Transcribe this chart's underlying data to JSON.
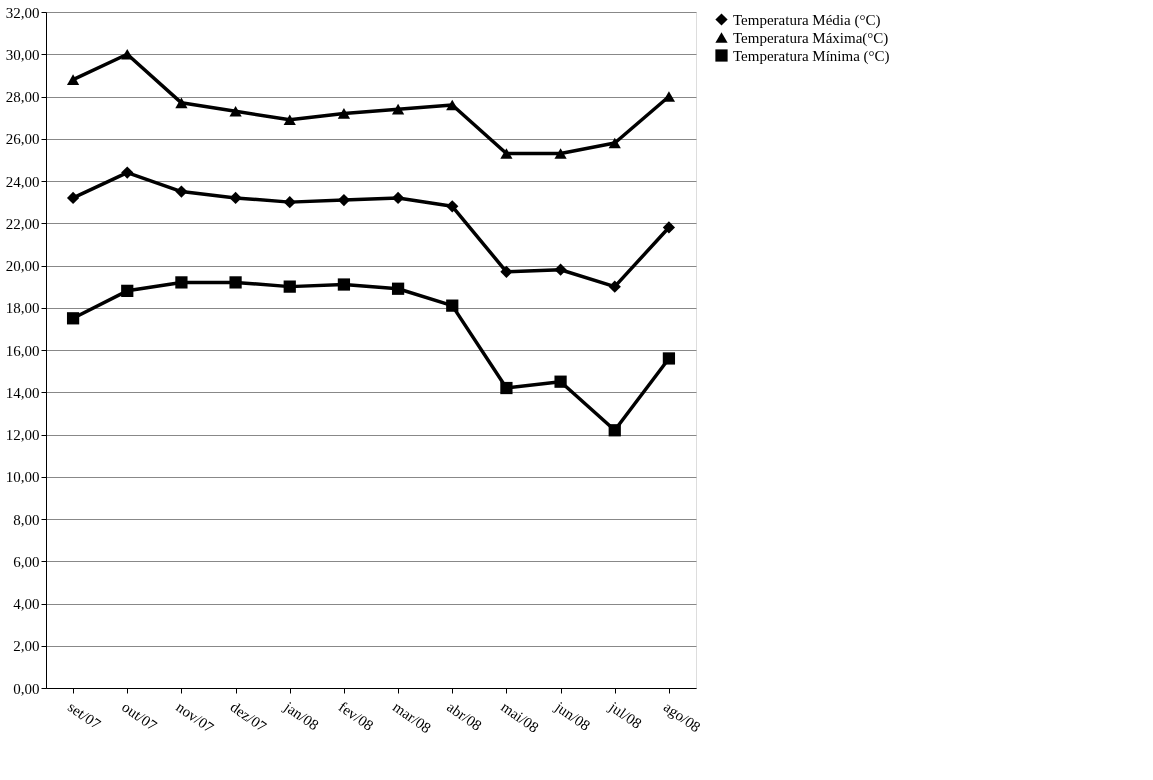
{
  "chart_data": {
    "type": "line",
    "categories": [
      "set/07",
      "out/07",
      "nov/07",
      "dez/07",
      "jan/08",
      "fev/08",
      "mar/08",
      "abr/08",
      "mai/08",
      "jun/08",
      "jul/08",
      "ago/08"
    ],
    "series": [
      {
        "name": "Temperatura Média (°C)",
        "color": "#000000",
        "marker": "diamond",
        "values": [
          23.2,
          24.4,
          23.5,
          23.2,
          23.0,
          23.1,
          23.2,
          22.8,
          19.7,
          19.8,
          19.0,
          21.8
        ]
      },
      {
        "name": "Temperatura Máxima(°C)",
        "color": "#000000",
        "marker": "triangle",
        "values": [
          28.8,
          30.0,
          27.7,
          27.3,
          26.9,
          27.2,
          27.4,
          27.6,
          25.3,
          25.3,
          25.8,
          28.0
        ]
      },
      {
        "name": "Temperatura Mínima (°C)",
        "color": "#000000",
        "marker": "square",
        "values": [
          17.5,
          18.8,
          19.2,
          19.2,
          19.0,
          19.1,
          18.9,
          18.1,
          14.2,
          14.5,
          12.2,
          15.6
        ]
      }
    ],
    "ylim": [
      0,
      32
    ],
    "yticks": [
      {
        "value": 0,
        "label": "0,00"
      },
      {
        "value": 2,
        "label": "2,00"
      },
      {
        "value": 4,
        "label": "4,00"
      },
      {
        "value": 6,
        "label": "6,00"
      },
      {
        "value": 8,
        "label": "8,00"
      },
      {
        "value": 10,
        "label": "10,00"
      },
      {
        "value": 12,
        "label": "12,00"
      },
      {
        "value": 14,
        "label": "14,00"
      },
      {
        "value": 16,
        "label": "16,00"
      },
      {
        "value": 18,
        "label": "18,00"
      },
      {
        "value": 20,
        "label": "20,00"
      },
      {
        "value": 22,
        "label": "22,00"
      },
      {
        "value": 24,
        "label": "24,00"
      },
      {
        "value": 26,
        "label": "26,00"
      },
      {
        "value": 28,
        "label": "28,00"
      },
      {
        "value": 30,
        "label": "30,00"
      },
      {
        "value": 32,
        "label": "32,00"
      }
    ],
    "grid": "y",
    "legend": "right",
    "line_style": "solid"
  }
}
